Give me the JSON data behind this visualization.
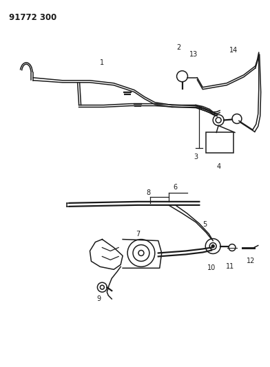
{
  "title": "91772 300",
  "bg_color": "#ffffff",
  "line_color": "#1a1a1a",
  "title_fontsize": 8.5,
  "label_fontsize": 7,
  "fig_width": 3.92,
  "fig_height": 5.33,
  "dpi": 100
}
